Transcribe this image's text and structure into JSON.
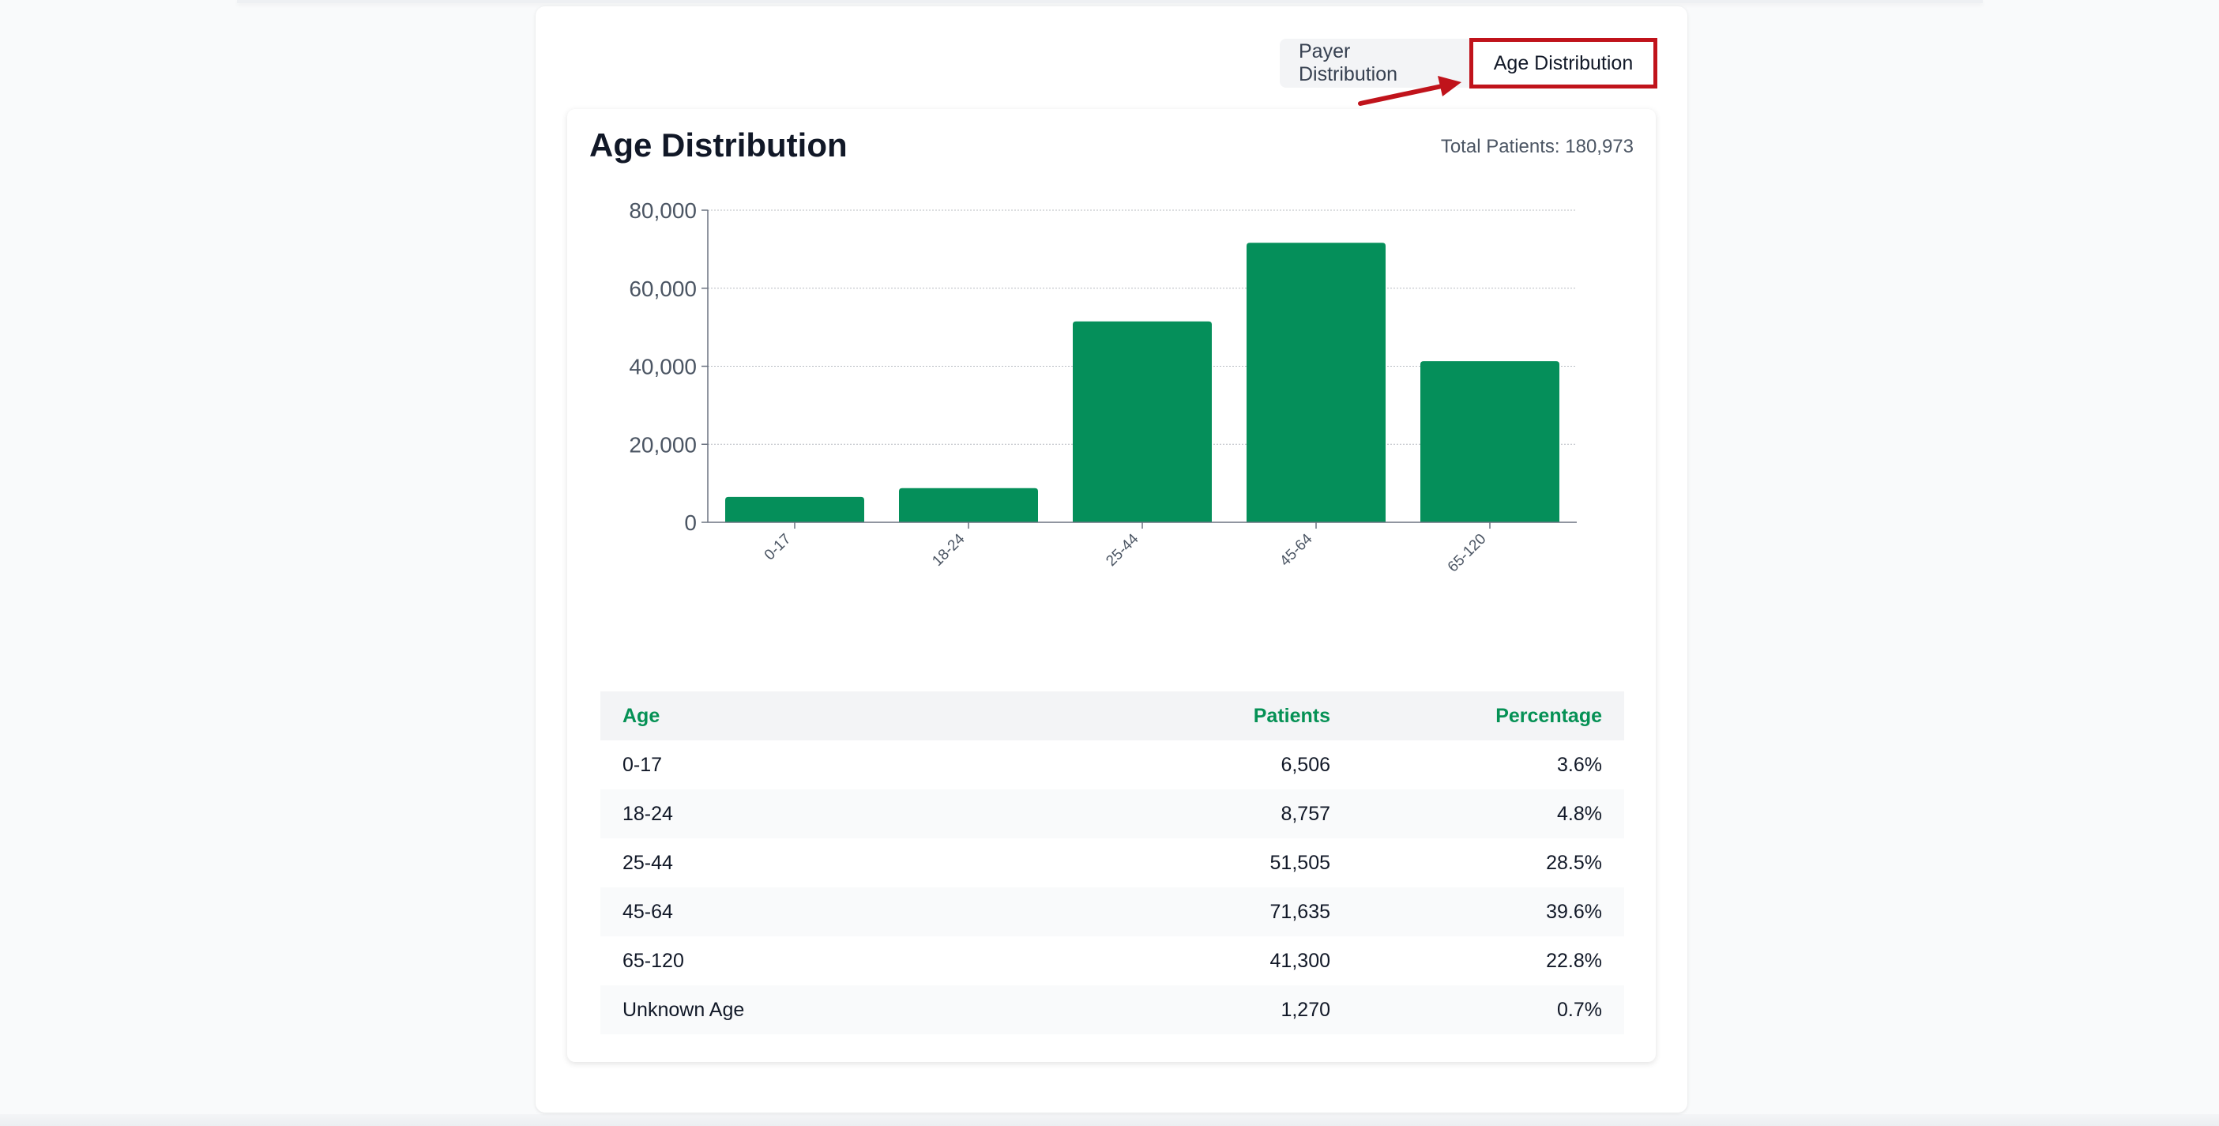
{
  "tabs": [
    {
      "label": "Payer Distribution",
      "active": false
    },
    {
      "label": "Age Distribution",
      "active": true
    }
  ],
  "card": {
    "title": "Age Distribution",
    "total_label": "Total Patients: 180,973"
  },
  "colors": {
    "bar": "#058f5a",
    "header_text": "#059155",
    "highlight": "#c0131b"
  },
  "chart_data": {
    "type": "bar",
    "categories": [
      "0-17",
      "18-24",
      "25-44",
      "45-64",
      "65-120"
    ],
    "values": [
      6506,
      8757,
      51505,
      71635,
      41300
    ],
    "yticks": [
      "0",
      "20,000",
      "40,000",
      "60,000",
      "80,000"
    ],
    "ylim": [
      0,
      80000
    ],
    "grid": true,
    "title": "",
    "xlabel": "",
    "ylabel": ""
  },
  "table": {
    "headers": [
      "Age",
      "Patients",
      "Percentage"
    ],
    "rows": [
      [
        "0-17",
        "6,506",
        "3.6%"
      ],
      [
        "18-24",
        "8,757",
        "4.8%"
      ],
      [
        "25-44",
        "51,505",
        "28.5%"
      ],
      [
        "45-64",
        "71,635",
        "39.6%"
      ],
      [
        "65-120",
        "41,300",
        "22.8%"
      ],
      [
        "Unknown Age",
        "1,270",
        "0.7%"
      ]
    ]
  }
}
